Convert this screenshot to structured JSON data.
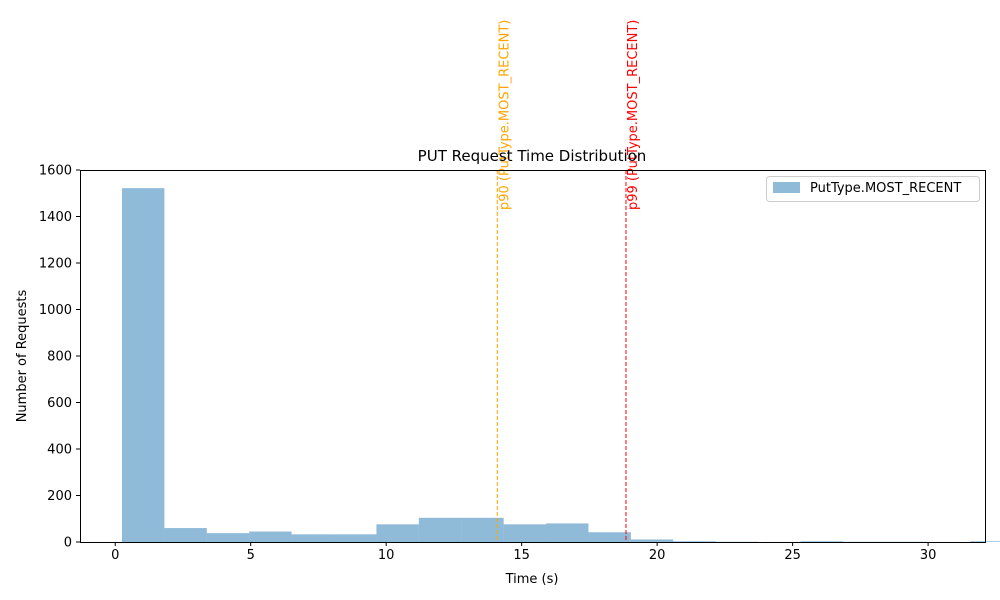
{
  "chart_data": {
    "type": "bar",
    "title": "PUT Request Time Distribution",
    "xlabel": "Time (s)",
    "ylabel": "Number of Requests",
    "xlim": [
      -1.3,
      32.1
    ],
    "ylim": [
      0,
      1600
    ],
    "xticks": [
      0,
      5,
      10,
      15,
      20,
      25,
      30
    ],
    "yticks": [
      0,
      200,
      400,
      600,
      800,
      1000,
      1200,
      1400,
      1600
    ],
    "grid": false,
    "legend_position": "top-right",
    "series": [
      {
        "name": "PutType.MOST_RECENT",
        "color": "#1f77b4",
        "alpha": 0.5,
        "bin_start": 0.25,
        "bin_width": 1.565,
        "values": [
          1522,
          60,
          38,
          45,
          33,
          33,
          76,
          104,
          104,
          76,
          80,
          42,
          11,
          3,
          1,
          0,
          3,
          1,
          1,
          0,
          3
        ]
      }
    ],
    "annotations": [
      {
        "label": "p90 (PutType.MOST_RECENT)",
        "x": 14.1,
        "color": "#ffa500",
        "style": "dashed"
      },
      {
        "label": "p99 (PutType.MOST_RECENT)",
        "x": 18.85,
        "color": "#ff0000",
        "style": "dashed"
      }
    ]
  }
}
